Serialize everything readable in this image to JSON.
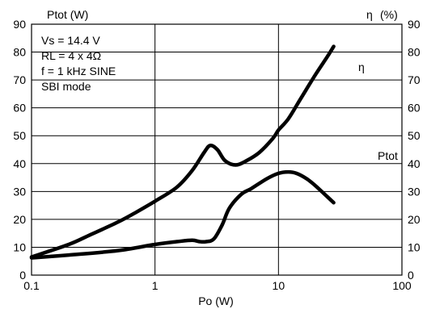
{
  "chart_data": {
    "type": "line",
    "x_axis": {
      "label": "Po (W)",
      "scale": "log",
      "range": [
        0.1,
        100
      ],
      "ticks": [
        0.1,
        1,
        10,
        100
      ],
      "tick_labels": [
        "0.1",
        "1",
        "10",
        "100"
      ]
    },
    "y_left": {
      "label": "Ptot (W)",
      "range": [
        0,
        90
      ],
      "ticks": [
        0,
        10,
        20,
        30,
        40,
        50,
        60,
        70,
        80,
        90
      ],
      "tick_labels": [
        "0",
        "10",
        "20",
        "30",
        "40",
        "50",
        "60",
        "70",
        "80",
        "90"
      ]
    },
    "y_right": {
      "label_symbol": "η",
      "label_unit": "(%)",
      "range": [
        0,
        90
      ],
      "ticks": [
        0,
        10,
        20,
        30,
        40,
        50,
        60,
        70,
        80,
        90
      ],
      "tick_labels": [
        "0",
        "10",
        "20",
        "30",
        "40",
        "50",
        "60",
        "70",
        "80",
        "90"
      ]
    },
    "grid": {
      "vertical": true,
      "horizontal": true
    },
    "annotation_lines": [
      "Vs = 14.4 V",
      "RL = 4 x 4Ω",
      "f = 1 kHz SINE",
      "SBI mode"
    ],
    "series": [
      {
        "name": "η",
        "axis": "right",
        "color": "#000000",
        "points": [
          [
            0.1,
            6.5
          ],
          [
            0.2,
            11
          ],
          [
            0.3,
            14.5
          ],
          [
            0.5,
            19
          ],
          [
            0.7,
            22.5
          ],
          [
            1,
            26.5
          ],
          [
            1.5,
            31.5
          ],
          [
            2,
            37.5
          ],
          [
            2.5,
            44
          ],
          [
            2.8,
            46.5
          ],
          [
            3.2,
            45
          ],
          [
            3.7,
            41
          ],
          [
            4.5,
            39.5
          ],
          [
            5.5,
            41
          ],
          [
            7,
            44
          ],
          [
            9,
            49
          ],
          [
            10,
            52
          ],
          [
            12,
            56
          ],
          [
            15,
            63
          ],
          [
            20,
            72
          ],
          [
            25,
            78.5
          ],
          [
            28,
            82
          ]
        ]
      },
      {
        "name": "Ptot",
        "axis": "left",
        "color": "#000000",
        "points": [
          [
            0.1,
            6.2
          ],
          [
            0.2,
            7.2
          ],
          [
            0.5,
            8.8
          ],
          [
            1,
            11
          ],
          [
            1.5,
            12
          ],
          [
            2,
            12.5
          ],
          [
            2.3,
            12
          ],
          [
            2.6,
            12
          ],
          [
            3,
            13
          ],
          [
            3.5,
            18
          ],
          [
            4,
            24
          ],
          [
            5,
            29
          ],
          [
            6,
            31
          ],
          [
            8,
            34.5
          ],
          [
            10,
            36.5
          ],
          [
            12,
            37
          ],
          [
            14,
            36.5
          ],
          [
            17,
            34.5
          ],
          [
            20,
            32
          ],
          [
            25,
            28
          ],
          [
            28,
            26
          ]
        ]
      }
    ]
  }
}
